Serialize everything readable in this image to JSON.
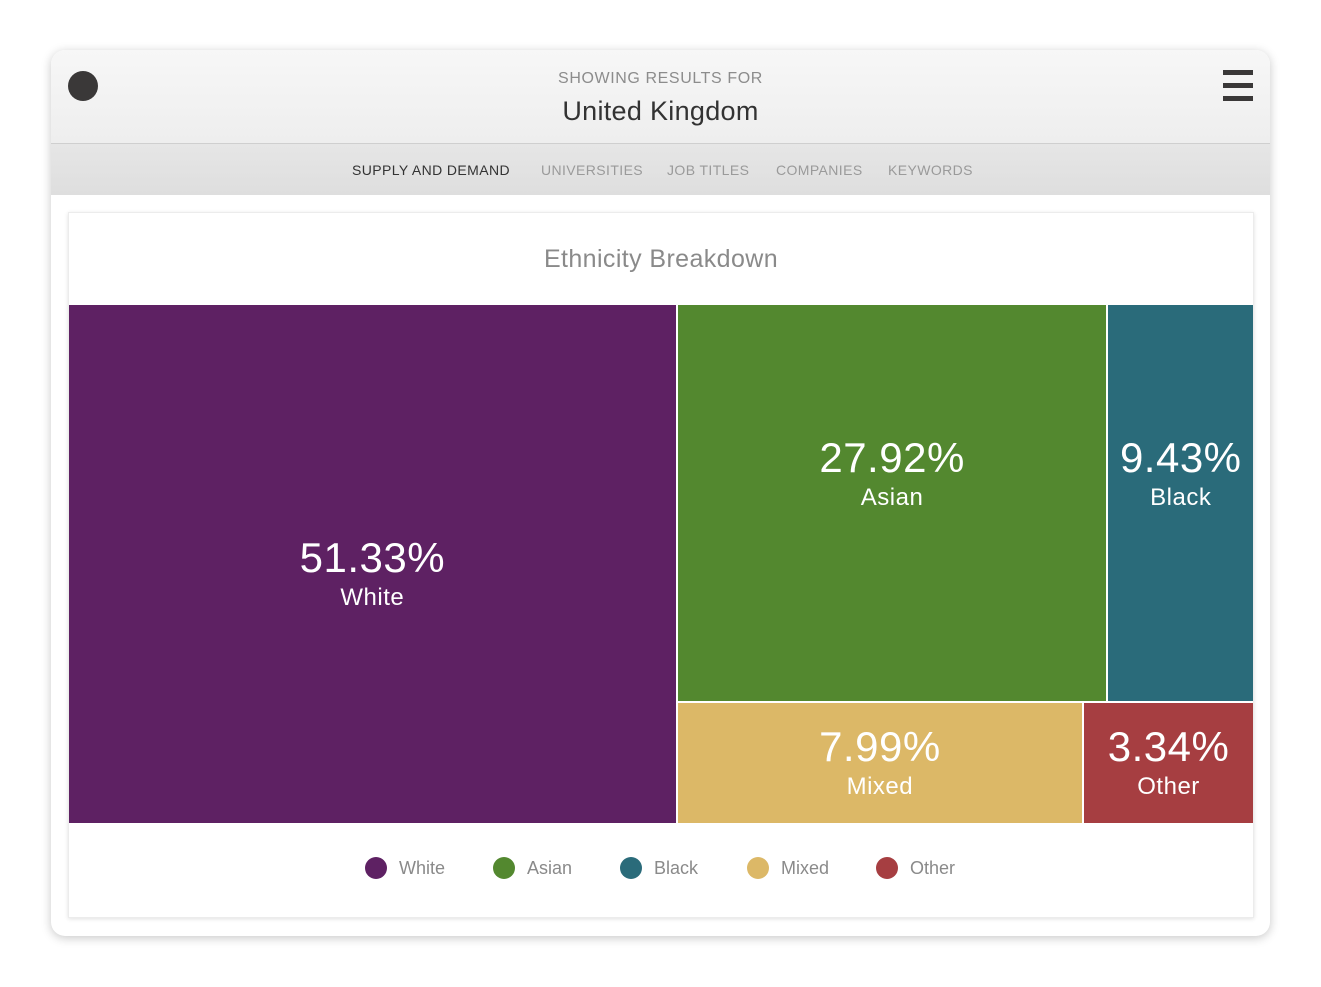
{
  "header": {
    "subtitle": "SHOWING RESULTS FOR",
    "title": "United Kingdom",
    "dot_color": "#3a3838"
  },
  "nav": {
    "tabs": [
      {
        "label": "SUPPLY AND DEMAND",
        "active": true
      },
      {
        "label": "UNIVERSITIES",
        "active": false
      },
      {
        "label": "JOB TITLES",
        "active": false
      },
      {
        "label": "COMPANIES",
        "active": false
      },
      {
        "label": "KEYWORDS",
        "active": false
      }
    ]
  },
  "chart_data": {
    "type": "treemap",
    "title": "Ethnicity Breakdown",
    "unit": "%",
    "items": [
      {
        "name": "White",
        "value": 51.33,
        "label": "51.33%",
        "color": "#5e2163"
      },
      {
        "name": "Asian",
        "value": 27.92,
        "label": "27.92%",
        "color": "#53882f"
      },
      {
        "name": "Black",
        "value": 9.43,
        "label": "9.43%",
        "color": "#2a6b7a"
      },
      {
        "name": "Mixed",
        "value": 7.99,
        "label": "7.99%",
        "color": "#dcb867"
      },
      {
        "name": "Other",
        "value": 3.34,
        "label": "3.34%",
        "color": "#a63e41"
      }
    ],
    "legend": [
      "White",
      "Asian",
      "Black",
      "Mixed",
      "Other"
    ],
    "legend_position": "bottom"
  }
}
